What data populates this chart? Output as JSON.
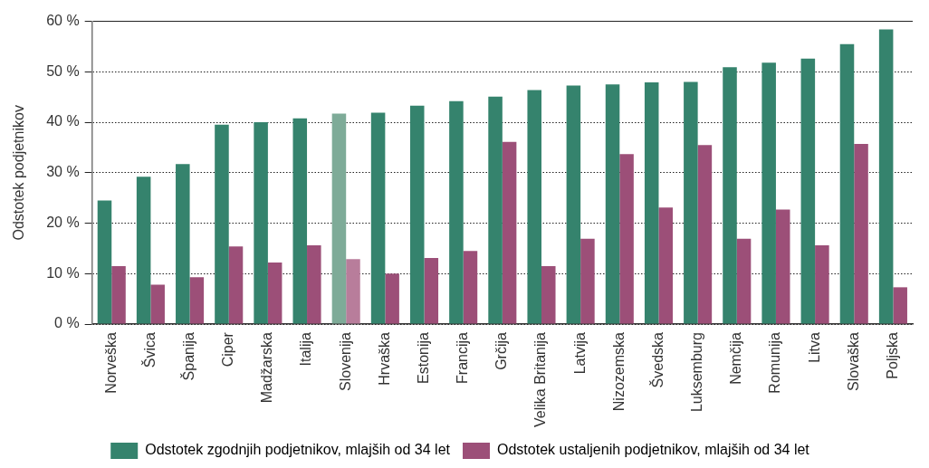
{
  "chart_data": {
    "type": "bar",
    "ylabel": "Odstotek podjetnikov",
    "categories": [
      "Norveška",
      "Švica",
      "Španija",
      "Ciper",
      "Madžarska",
      "Italija",
      "Slovenija",
      "Hrvaška",
      "Estonija",
      "Francija",
      "Grčija",
      "Velika Britanija",
      "Latvija",
      "Nizozemska",
      "Švedska",
      "Luksemburg",
      "Nemčija",
      "Romunija",
      "Litva",
      "Slovaška",
      "Poljska"
    ],
    "series": [
      {
        "name": "Odstotek zgodnjih podjetnikov, mlajših od 34 let",
        "color": "#35836d",
        "colors": [
          "#35836d",
          "#35836d",
          "#35836d",
          "#35836d",
          "#35836d",
          "#35836d",
          "#7eab98",
          "#35836d",
          "#35836d",
          "#35836d",
          "#35836d",
          "#35836d",
          "#35836d",
          "#35836d",
          "#35836d",
          "#35836d",
          "#35836d",
          "#35836d",
          "#35836d",
          "#35836d",
          "#35836d"
        ],
        "values": [
          24.5,
          29.2,
          31.7,
          39.5,
          40.0,
          40.8,
          41.7,
          41.9,
          43.3,
          44.2,
          45.1,
          46.4,
          47.3,
          47.5,
          47.9,
          48.0,
          50.9,
          51.8,
          52.6,
          55.5,
          58.4
        ]
      },
      {
        "name": "Odstotek ustaljenih podjetnikov, mlajših od 34 let",
        "color": "#9c4f78",
        "colors": [
          "#9c4f78",
          "#9c4f78",
          "#9c4f78",
          "#9c4f78",
          "#9c4f78",
          "#9c4f78",
          "#b87d9b",
          "#9c4f78",
          "#9c4f78",
          "#9c4f78",
          "#9c4f78",
          "#9c4f78",
          "#9c4f78",
          "#9c4f78",
          "#9c4f78",
          "#9c4f78",
          "#9c4f78",
          "#9c4f78",
          "#9c4f78",
          "#9c4f78",
          "#9c4f78"
        ],
        "values": [
          11.5,
          7.8,
          9.3,
          15.4,
          12.2,
          15.6,
          12.9,
          10.0,
          13.1,
          14.5,
          36.1,
          11.5,
          16.9,
          33.7,
          23.1,
          35.5,
          16.9,
          22.7,
          15.6,
          35.7,
          7.3
        ]
      }
    ],
    "ylim": [
      0,
      60
    ],
    "yticks": [
      {
        "value": 0,
        "label": "0 %"
      },
      {
        "value": 10,
        "label": "10 %"
      },
      {
        "value": 20,
        "label": "20 %"
      },
      {
        "value": 30,
        "label": "30 %"
      },
      {
        "value": 40,
        "label": "40 %"
      },
      {
        "value": 50,
        "label": "50 %"
      },
      {
        "value": 60,
        "label": "60 %"
      }
    ],
    "grid": "y",
    "legend": "bottom"
  }
}
